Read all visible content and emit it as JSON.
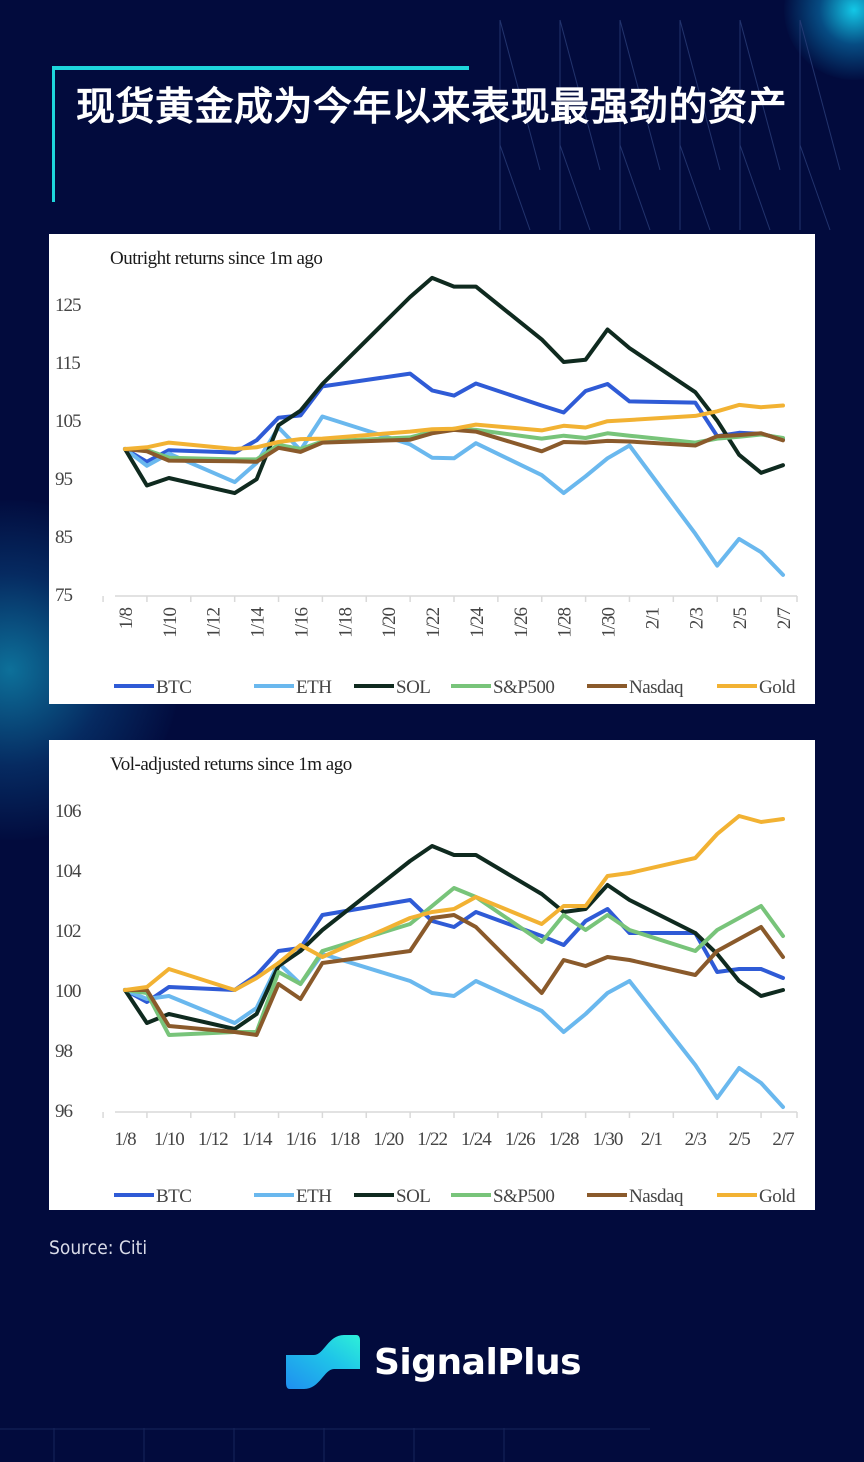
{
  "page": {
    "title": "现货黄金成为今年以来表现最强劲的资产",
    "source": "Source: Citi",
    "brand": "SignalPlus",
    "brand_icon": "signalplus-logo-icon",
    "colors": {
      "background": "#020b3d",
      "accent": "#1ed6dc"
    }
  },
  "chart_data": [
    {
      "type": "line",
      "title": "Outright returns since 1m ago",
      "xlabel": "",
      "ylabel": "",
      "x_tick_labels": [
        "1/8",
        "1/10",
        "1/12",
        "1/14",
        "1/16",
        "1/18",
        "1/20",
        "1/22",
        "1/24",
        "1/26",
        "1/28",
        "1/30",
        "2/1",
        "2/3",
        "2/5",
        "2/7"
      ],
      "x_tick_day_offsets": [
        0,
        2,
        4,
        6,
        8,
        10,
        12,
        14,
        16,
        18,
        20,
        22,
        24,
        26,
        28,
        30
      ],
      "x_tick_rotation": "vertical",
      "y_tick_labels": [
        "125",
        "115",
        "105",
        "95",
        "85",
        "75"
      ],
      "y_ticks": [
        125,
        115,
        105,
        95,
        85,
        75
      ],
      "ylim": [
        75,
        130
      ],
      "grid": false,
      "legend_position": "bottom",
      "x": [
        "1/8",
        "1/9",
        "1/10",
        "1/13",
        "1/14",
        "1/15",
        "1/16",
        "1/17",
        "1/21",
        "1/22",
        "1/23",
        "1/24",
        "1/27",
        "1/28",
        "1/29",
        "1/30",
        "1/31",
        "2/3",
        "2/4",
        "2/5",
        "2/6",
        "2/7"
      ],
      "x_day_offsets": [
        0,
        1,
        2,
        5,
        6,
        7,
        8,
        9,
        13,
        14,
        15,
        16,
        19,
        20,
        21,
        22,
        23,
        26,
        27,
        28,
        29,
        30
      ],
      "series": [
        {
          "name": "BTC",
          "color": "#2f5bd6",
          "values": [
            100,
            97.8,
            99.8,
            99.4,
            101.5,
            105.4,
            105.8,
            110.8,
            113.0,
            110.1,
            109.2,
            111.3,
            107.5,
            106.3,
            110.0,
            111.2,
            108.2,
            108.0,
            102.2,
            102.8,
            102.6,
            101.7
          ]
        },
        {
          "name": "ETH",
          "color": "#6ab8ee",
          "values": [
            100,
            97.1,
            99.2,
            94.3,
            97.6,
            103.7,
            99.8,
            105.6,
            100.8,
            98.5,
            98.4,
            101.0,
            95.5,
            92.4,
            95.3,
            98.4,
            100.6,
            85.4,
            79.9,
            84.5,
            82.2,
            78.3
          ]
        },
        {
          "name": "SOL",
          "color": "#0f2a1f",
          "values": [
            100,
            93.7,
            95.0,
            92.4,
            94.8,
            104.1,
            106.6,
            111.2,
            126.2,
            129.5,
            128.0,
            128.0,
            118.9,
            115.0,
            115.4,
            120.6,
            117.4,
            109.8,
            104.9,
            99.0,
            95.9,
            97.2
          ]
        },
        {
          "name": "S&P500",
          "color": "#78c47a",
          "values": [
            100,
            99.8,
            98.5,
            98.2,
            98.2,
            100.7,
            100.0,
            101.3,
            102.0,
            103.0,
            103.5,
            103.3,
            101.8,
            102.3,
            101.9,
            102.7,
            102.3,
            101.1,
            101.8,
            102.1,
            102.5,
            101.9
          ]
        },
        {
          "name": "Nasdaq",
          "color": "#8a5a2b",
          "values": [
            100,
            99.6,
            98.0,
            97.9,
            97.8,
            100.2,
            99.5,
            101.1,
            101.6,
            102.7,
            103.3,
            103.0,
            99.6,
            101.2,
            101.1,
            101.4,
            101.3,
            100.6,
            102.2,
            102.4,
            102.7,
            101.5
          ]
        },
        {
          "name": "Gold",
          "color": "#f2b233",
          "values": [
            100,
            100.3,
            101.1,
            100.0,
            100.3,
            101.2,
            101.7,
            101.8,
            103.0,
            103.4,
            103.5,
            104.2,
            103.2,
            104.0,
            103.7,
            104.8,
            105.0,
            105.7,
            106.5,
            107.6,
            107.2,
            107.5
          ]
        }
      ]
    },
    {
      "type": "line",
      "title": "Vol-adjusted returns since 1m ago",
      "xlabel": "",
      "ylabel": "",
      "x_tick_labels": [
        "1/8",
        "1/10",
        "1/12",
        "1/14",
        "1/16",
        "1/18",
        "1/20",
        "1/22",
        "1/24",
        "1/26",
        "1/28",
        "1/30",
        "2/1",
        "2/3",
        "2/5",
        "2/7"
      ],
      "x_tick_day_offsets": [
        0,
        2,
        4,
        6,
        8,
        10,
        12,
        14,
        16,
        18,
        20,
        22,
        24,
        26,
        28,
        30
      ],
      "x_tick_rotation": "horizontal",
      "y_tick_labels": [
        "106",
        "104",
        "102",
        "100",
        "98",
        "96"
      ],
      "y_ticks": [
        106,
        104,
        102,
        100,
        98,
        96
      ],
      "ylim": [
        96,
        106.5
      ],
      "grid": false,
      "legend_position": "bottom",
      "x": [
        "1/8",
        "1/9",
        "1/10",
        "1/13",
        "1/14",
        "1/15",
        "1/16",
        "1/17",
        "1/21",
        "1/22",
        "1/23",
        "1/24",
        "1/27",
        "1/28",
        "1/29",
        "1/30",
        "1/31",
        "2/3",
        "2/4",
        "2/5",
        "2/6",
        "2/7"
      ],
      "x_day_offsets": [
        0,
        1,
        2,
        5,
        6,
        7,
        8,
        9,
        13,
        14,
        15,
        16,
        19,
        20,
        21,
        22,
        23,
        26,
        27,
        28,
        29,
        30
      ],
      "series": [
        {
          "name": "BTC",
          "color": "#2f5bd6",
          "values": [
            100,
            99.6,
            100.1,
            100.0,
            100.5,
            101.3,
            101.4,
            102.5,
            103.0,
            102.3,
            102.1,
            102.6,
            101.8,
            101.5,
            102.3,
            102.7,
            101.9,
            101.9,
            100.6,
            100.7,
            100.7,
            100.4
          ]
        },
        {
          "name": "ETH",
          "color": "#6ab8ee",
          "values": [
            100,
            99.7,
            99.8,
            98.9,
            99.4,
            100.9,
            100.2,
            101.2,
            100.3,
            99.9,
            99.8,
            100.3,
            99.3,
            98.6,
            99.2,
            99.9,
            100.3,
            97.5,
            96.4,
            97.4,
            96.9,
            96.1
          ]
        },
        {
          "name": "SOL",
          "color": "#0f2a1f",
          "values": [
            100,
            98.9,
            99.2,
            98.7,
            99.2,
            100.8,
            101.3,
            102.0,
            104.3,
            104.8,
            104.5,
            104.5,
            103.2,
            102.6,
            102.7,
            103.5,
            103.0,
            101.9,
            101.2,
            100.3,
            99.8,
            100.0
          ]
        },
        {
          "name": "S&P500",
          "color": "#78c47a",
          "values": [
            100,
            99.9,
            98.5,
            98.6,
            98.6,
            100.6,
            100.2,
            101.3,
            102.2,
            102.8,
            103.4,
            103.1,
            101.6,
            102.5,
            102.0,
            102.5,
            102.0,
            101.3,
            102.0,
            102.4,
            102.8,
            101.8
          ]
        },
        {
          "name": "Nasdaq",
          "color": "#8a5a2b",
          "values": [
            100,
            100.0,
            98.8,
            98.6,
            98.5,
            100.2,
            99.7,
            100.9,
            101.3,
            102.4,
            102.5,
            102.1,
            99.9,
            101.0,
            100.8,
            101.1,
            101.0,
            100.5,
            101.3,
            101.7,
            102.1,
            101.1
          ]
        },
        {
          "name": "Gold",
          "color": "#f2b233",
          "values": [
            100,
            100.1,
            100.7,
            100.0,
            100.4,
            100.9,
            101.5,
            101.1,
            102.4,
            102.6,
            102.7,
            103.1,
            102.2,
            102.8,
            102.8,
            103.8,
            103.9,
            104.4,
            105.2,
            105.8,
            105.6,
            105.7
          ]
        }
      ]
    }
  ]
}
